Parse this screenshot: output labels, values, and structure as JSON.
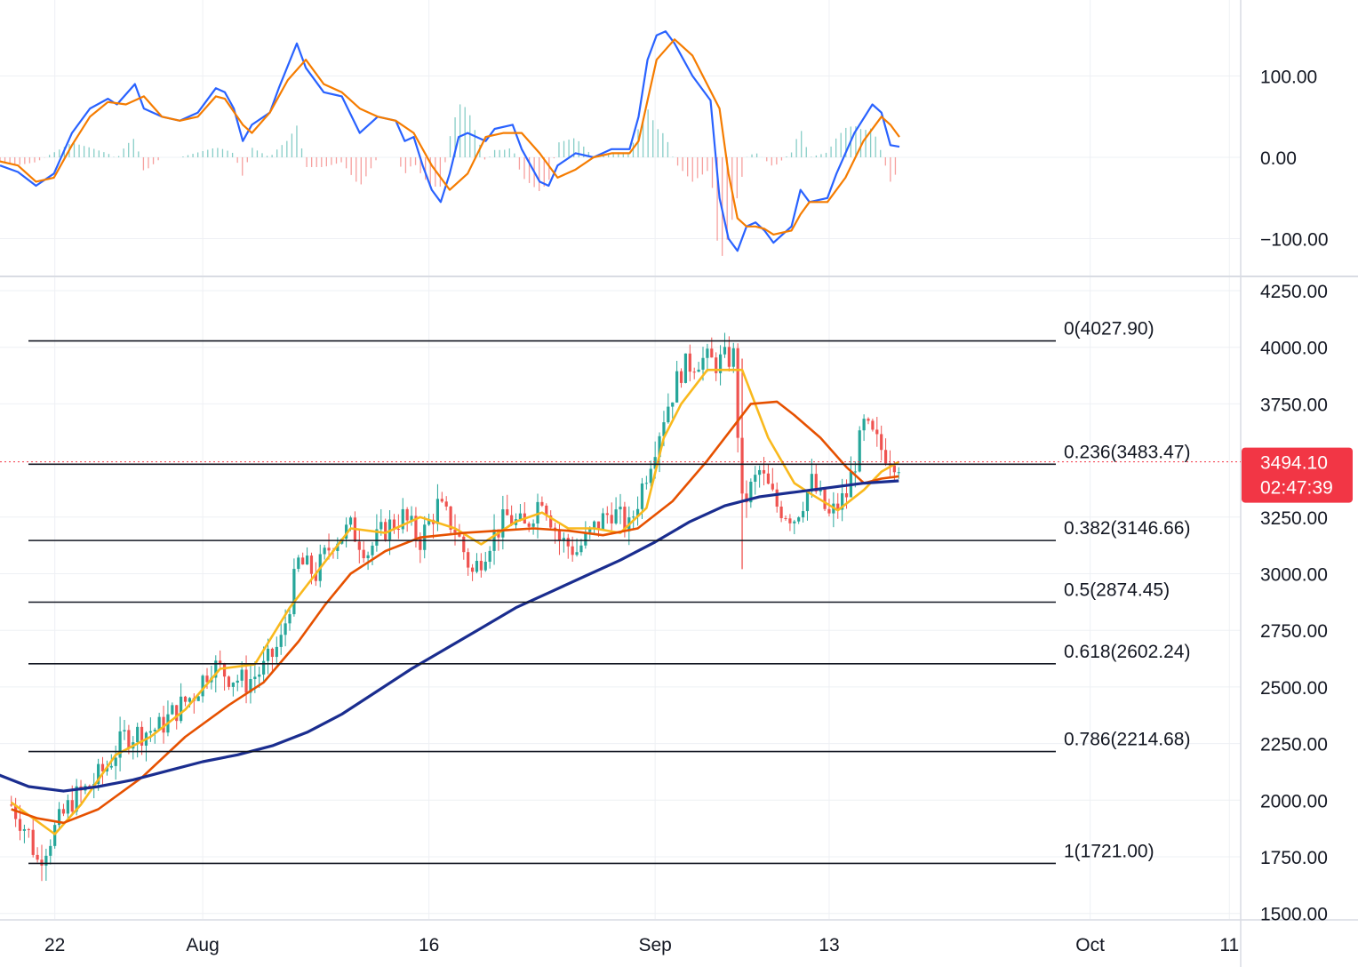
{
  "chart_data": [
    {
      "type": "line",
      "panel": "oscillator",
      "y_ticks": [
        "100.00",
        "0.00",
        "−100.00"
      ],
      "y_tick_values": [
        100,
        0,
        -100
      ],
      "ylim": [
        -120,
        150
      ],
      "series": [
        {
          "color": "#2962ff",
          "points": [
            [
              0,
              -10
            ],
            [
              2,
              -18
            ],
            [
              4,
              -35
            ],
            [
              6,
              -20
            ],
            [
              8,
              30
            ],
            [
              10,
              60
            ],
            [
              12,
              72
            ],
            [
              13,
              65
            ],
            [
              15,
              90
            ],
            [
              16,
              60
            ],
            [
              18,
              50
            ],
            [
              20,
              45
            ],
            [
              22,
              55
            ],
            [
              24,
              85
            ],
            [
              25,
              80
            ],
            [
              26,
              60
            ],
            [
              27,
              20
            ],
            [
              28,
              40
            ],
            [
              30,
              55
            ],
            [
              31,
              85
            ],
            [
              33,
              140
            ],
            [
              34,
              110
            ],
            [
              36,
              80
            ],
            [
              38,
              75
            ],
            [
              40,
              30
            ],
            [
              42,
              50
            ],
            [
              44,
              45
            ],
            [
              45,
              20
            ],
            [
              46,
              25
            ],
            [
              47,
              -10
            ],
            [
              48,
              -40
            ],
            [
              49,
              -55
            ],
            [
              50,
              -20
            ],
            [
              51,
              25
            ],
            [
              52,
              30
            ],
            [
              54,
              20
            ],
            [
              55,
              35
            ],
            [
              57,
              40
            ],
            [
              58,
              10
            ],
            [
              60,
              -30
            ],
            [
              61,
              -35
            ],
            [
              62,
              -10
            ],
            [
              64,
              5
            ],
            [
              66,
              0
            ],
            [
              68,
              10
            ],
            [
              70,
              10
            ],
            [
              71,
              50
            ],
            [
              72,
              120
            ],
            [
              73,
              150
            ],
            [
              74,
              155
            ],
            [
              75,
              140
            ],
            [
              77,
              100
            ],
            [
              79,
              70
            ],
            [
              80,
              -50
            ],
            [
              81,
              -100
            ],
            [
              82,
              -115
            ],
            [
              83,
              -85
            ],
            [
              84,
              -80
            ],
            [
              85,
              -90
            ],
            [
              86,
              -105
            ],
            [
              87,
              -95
            ],
            [
              88,
              -85
            ],
            [
              89,
              -40
            ],
            [
              90,
              -55
            ],
            [
              92,
              -50
            ],
            [
              93,
              -20
            ],
            [
              95,
              30
            ],
            [
              97,
              65
            ],
            [
              98,
              55
            ],
            [
              99,
              15
            ],
            [
              100,
              13
            ]
          ]
        },
        {
          "color": "#f57c00",
          "points": [
            [
              0,
              -5
            ],
            [
              2,
              -10
            ],
            [
              4,
              -30
            ],
            [
              6,
              -25
            ],
            [
              8,
              15
            ],
            [
              10,
              50
            ],
            [
              12,
              68
            ],
            [
              14,
              65
            ],
            [
              16,
              75
            ],
            [
              18,
              50
            ],
            [
              20,
              45
            ],
            [
              22,
              50
            ],
            [
              24,
              75
            ],
            [
              25,
              72
            ],
            [
              27,
              40
            ],
            [
              28,
              30
            ],
            [
              30,
              55
            ],
            [
              32,
              95
            ],
            [
              34,
              120
            ],
            [
              36,
              90
            ],
            [
              38,
              80
            ],
            [
              40,
              60
            ],
            [
              42,
              50
            ],
            [
              44,
              45
            ],
            [
              46,
              30
            ],
            [
              48,
              -10
            ],
            [
              50,
              -40
            ],
            [
              52,
              -20
            ],
            [
              54,
              25
            ],
            [
              56,
              30
            ],
            [
              58,
              30
            ],
            [
              60,
              5
            ],
            [
              62,
              -25
            ],
            [
              64,
              -15
            ],
            [
              66,
              0
            ],
            [
              68,
              5
            ],
            [
              70,
              5
            ],
            [
              71,
              20
            ],
            [
              72,
              70
            ],
            [
              73,
              120
            ],
            [
              75,
              145
            ],
            [
              77,
              125
            ],
            [
              80,
              60
            ],
            [
              81,
              -20
            ],
            [
              82,
              -75
            ],
            [
              83,
              -85
            ],
            [
              84,
              -85
            ],
            [
              85,
              -88
            ],
            [
              86,
              -95
            ],
            [
              88,
              -90
            ],
            [
              89,
              -70
            ],
            [
              90,
              -55
            ],
            [
              92,
              -55
            ],
            [
              94,
              -25
            ],
            [
              96,
              20
            ],
            [
              98,
              50
            ],
            [
              99,
              40
            ],
            [
              100,
              25
            ]
          ]
        }
      ]
    },
    {
      "type": "candlestick",
      "panel": "price",
      "x_ticks": [
        "22",
        "Aug",
        "16",
        "Sep",
        "13",
        "Oct",
        "11"
      ],
      "x_tick_positions": [
        5,
        22,
        48,
        74,
        94,
        124,
        140
      ],
      "xlim": [
        -1.3,
        141.3
      ],
      "y_ticks": [
        "4250.00",
        "4000.00",
        "3750.00",
        "3250.00",
        "3000.00",
        "2750.00",
        "2500.00",
        "2250.00",
        "2000.00",
        "1750.00",
        "1500.00"
      ],
      "y_tick_values": [
        4250,
        4000,
        3750,
        3250,
        3000,
        2750,
        2500,
        2250,
        2000,
        1750,
        1500
      ],
      "ylim": [
        1480,
        4280
      ],
      "current_price": {
        "price_label": "3494.10",
        "countdown_label": "02:47:39",
        "value": 3494.1,
        "color": "#f23645"
      },
      "fib_levels": [
        {
          "label": "0(4027.90)",
          "value": 4027.9
        },
        {
          "label": "0.236(3483.47)",
          "value": 3483.47
        },
        {
          "label": "0.382(3146.66)",
          "value": 3146.66
        },
        {
          "label": "0.5(2874.45)",
          "value": 2874.45
        },
        {
          "label": "0.618(2602.24)",
          "value": 2602.24
        },
        {
          "label": "0.786(2214.68)",
          "value": 2214.68
        },
        {
          "label": "1(1721.00)",
          "value": 1721.0
        }
      ],
      "close_path": [
        [
          0,
          1980
        ],
        [
          2,
          1850
        ],
        [
          3,
          1730
        ],
        [
          5,
          1870
        ],
        [
          7,
          2000
        ],
        [
          9,
          2060
        ],
        [
          11,
          2150
        ],
        [
          13,
          2280
        ],
        [
          15,
          2300
        ],
        [
          17,
          2320
        ],
        [
          19,
          2400
        ],
        [
          21,
          2470
        ],
        [
          23,
          2600
        ],
        [
          25,
          2550
        ],
        [
          27,
          2520
        ],
        [
          29,
          2580
        ],
        [
          31,
          2700
        ],
        [
          33,
          3050
        ],
        [
          35,
          3000
        ],
        [
          37,
          3150
        ],
        [
          39,
          3200
        ],
        [
          41,
          3100
        ],
        [
          43,
          3200
        ],
        [
          45,
          3250
        ],
        [
          47,
          3150
        ],
        [
          49,
          3300
        ],
        [
          51,
          3200
        ],
        [
          53,
          3000
        ],
        [
          55,
          3150
        ],
        [
          57,
          3250
        ],
        [
          59,
          3200
        ],
        [
          61,
          3350
        ],
        [
          63,
          3150
        ],
        [
          65,
          3100
        ],
        [
          67,
          3200
        ],
        [
          69,
          3280
        ],
        [
          71,
          3200
        ],
        [
          73,
          3450
        ],
        [
          75,
          3700
        ],
        [
          77,
          3900
        ],
        [
          79,
          3950
        ],
        [
          81,
          3930
        ],
        [
          83,
          3960
        ],
        [
          84,
          3300
        ],
        [
          86,
          3450
        ],
        [
          88,
          3300
        ],
        [
          90,
          3250
        ],
        [
          92,
          3400
        ],
        [
          94,
          3250
        ],
        [
          96,
          3350
        ],
        [
          98,
          3650
        ],
        [
          100,
          3550
        ],
        [
          102,
          3494
        ]
      ],
      "moving_averages": [
        {
          "color": "#f9b91d",
          "points": [
            [
              0,
              1990
            ],
            [
              5,
              1850
            ],
            [
              8,
              1980
            ],
            [
              12,
              2200
            ],
            [
              16,
              2280
            ],
            [
              20,
              2400
            ],
            [
              24,
              2580
            ],
            [
              28,
              2600
            ],
            [
              32,
              2850
            ],
            [
              35,
              3000
            ],
            [
              39,
              3200
            ],
            [
              43,
              3180
            ],
            [
              47,
              3250
            ],
            [
              51,
              3200
            ],
            [
              54,
              3130
            ],
            [
              58,
              3230
            ],
            [
              61,
              3270
            ],
            [
              64,
              3200
            ],
            [
              67,
              3200
            ],
            [
              70,
              3180
            ],
            [
              73,
              3290
            ],
            [
              75,
              3600
            ],
            [
              77,
              3750
            ],
            [
              80,
              3900
            ],
            [
              84,
              3900
            ],
            [
              87,
              3600
            ],
            [
              90,
              3400
            ],
            [
              92,
              3350
            ],
            [
              95,
              3280
            ],
            [
              98,
              3370
            ],
            [
              100,
              3450
            ],
            [
              102,
              3494
            ]
          ]
        },
        {
          "color": "#e65100",
          "points": [
            [
              0,
              1960
            ],
            [
              3,
              1920
            ],
            [
              6,
              1900
            ],
            [
              10,
              1960
            ],
            [
              15,
              2100
            ],
            [
              20,
              2280
            ],
            [
              25,
              2420
            ],
            [
              29,
              2520
            ],
            [
              33,
              2700
            ],
            [
              36,
              2860
            ],
            [
              39,
              3000
            ],
            [
              43,
              3100
            ],
            [
              47,
              3160
            ],
            [
              52,
              3180
            ],
            [
              56,
              3190
            ],
            [
              60,
              3200
            ],
            [
              64,
              3190
            ],
            [
              68,
              3170
            ],
            [
              72,
              3200
            ],
            [
              76,
              3320
            ],
            [
              80,
              3500
            ],
            [
              83,
              3650
            ],
            [
              85,
              3750
            ],
            [
              88,
              3760
            ],
            [
              90,
              3700
            ],
            [
              93,
              3600
            ],
            [
              96,
              3470
            ],
            [
              98,
              3400
            ],
            [
              100,
              3420
            ],
            [
              102,
              3430
            ]
          ]
        },
        {
          "color": "#1a2d8f",
          "points": [
            [
              -2,
              2120
            ],
            [
              2,
              2060
            ],
            [
              6,
              2040
            ],
            [
              10,
              2060
            ],
            [
              14,
              2090
            ],
            [
              18,
              2130
            ],
            [
              22,
              2170
            ],
            [
              26,
              2200
            ],
            [
              30,
              2240
            ],
            [
              34,
              2300
            ],
            [
              38,
              2380
            ],
            [
              42,
              2480
            ],
            [
              46,
              2580
            ],
            [
              50,
              2670
            ],
            [
              54,
              2760
            ],
            [
              58,
              2850
            ],
            [
              62,
              2920
            ],
            [
              66,
              2990
            ],
            [
              70,
              3060
            ],
            [
              74,
              3140
            ],
            [
              78,
              3230
            ],
            [
              82,
              3300
            ],
            [
              86,
              3340
            ],
            [
              90,
              3360
            ],
            [
              94,
              3380
            ],
            [
              98,
              3400
            ],
            [
              102,
              3410
            ]
          ]
        }
      ]
    }
  ]
}
